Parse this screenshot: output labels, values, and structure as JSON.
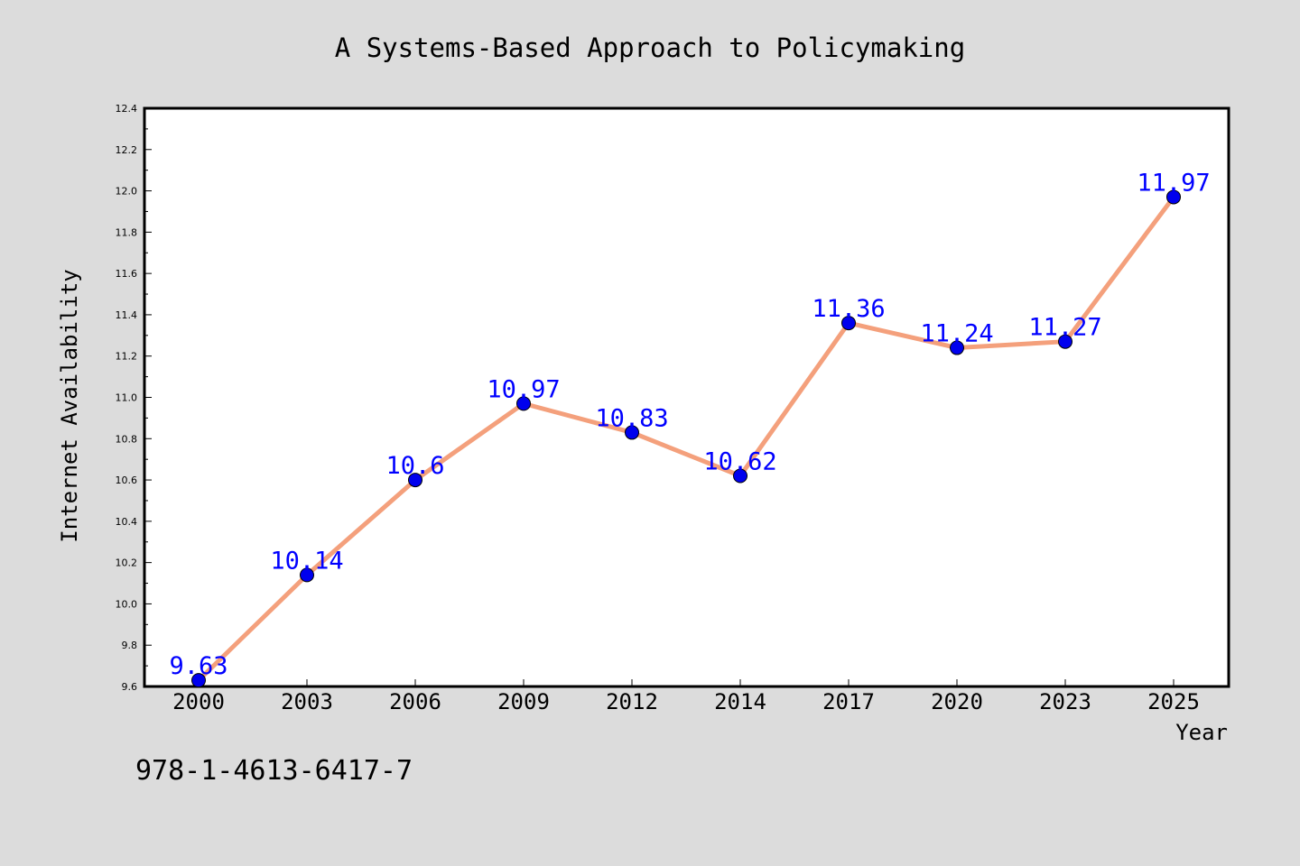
{
  "chart_data": {
    "type": "line",
    "title": "A Systems-Based Approach to Policymaking",
    "xlabel": "Year",
    "ylabel": "Internet Availability",
    "categories": [
      "2000",
      "2003",
      "2006",
      "2009",
      "2012",
      "2014",
      "2017",
      "2020",
      "2023",
      "2025"
    ],
    "series": [
      {
        "values": [
          9.63,
          10.14,
          10.6,
          10.97,
          10.83,
          10.62,
          11.36,
          11.24,
          11.27,
          11.97
        ],
        "data_labels": [
          "9.63",
          "10.14",
          "10.6",
          "10.97",
          "10.83",
          "10.62",
          "11.36",
          "11.24",
          "11.27",
          "11.97"
        ]
      }
    ],
    "ylim": [
      9.6,
      12.4
    ],
    "yticks": [
      "9.6",
      "9.8",
      "10.0",
      "10.2",
      "10.4",
      "10.6",
      "10.8",
      "11.0",
      "11.2",
      "11.4",
      "11.6",
      "11.8",
      "12.0",
      "12.2",
      "12.4"
    ],
    "grid": false,
    "line_color": "#f4a07c",
    "marker_color": "#0000ee",
    "label_color": "#0000ff"
  },
  "footer_text": "978-1-4613-6417-7"
}
